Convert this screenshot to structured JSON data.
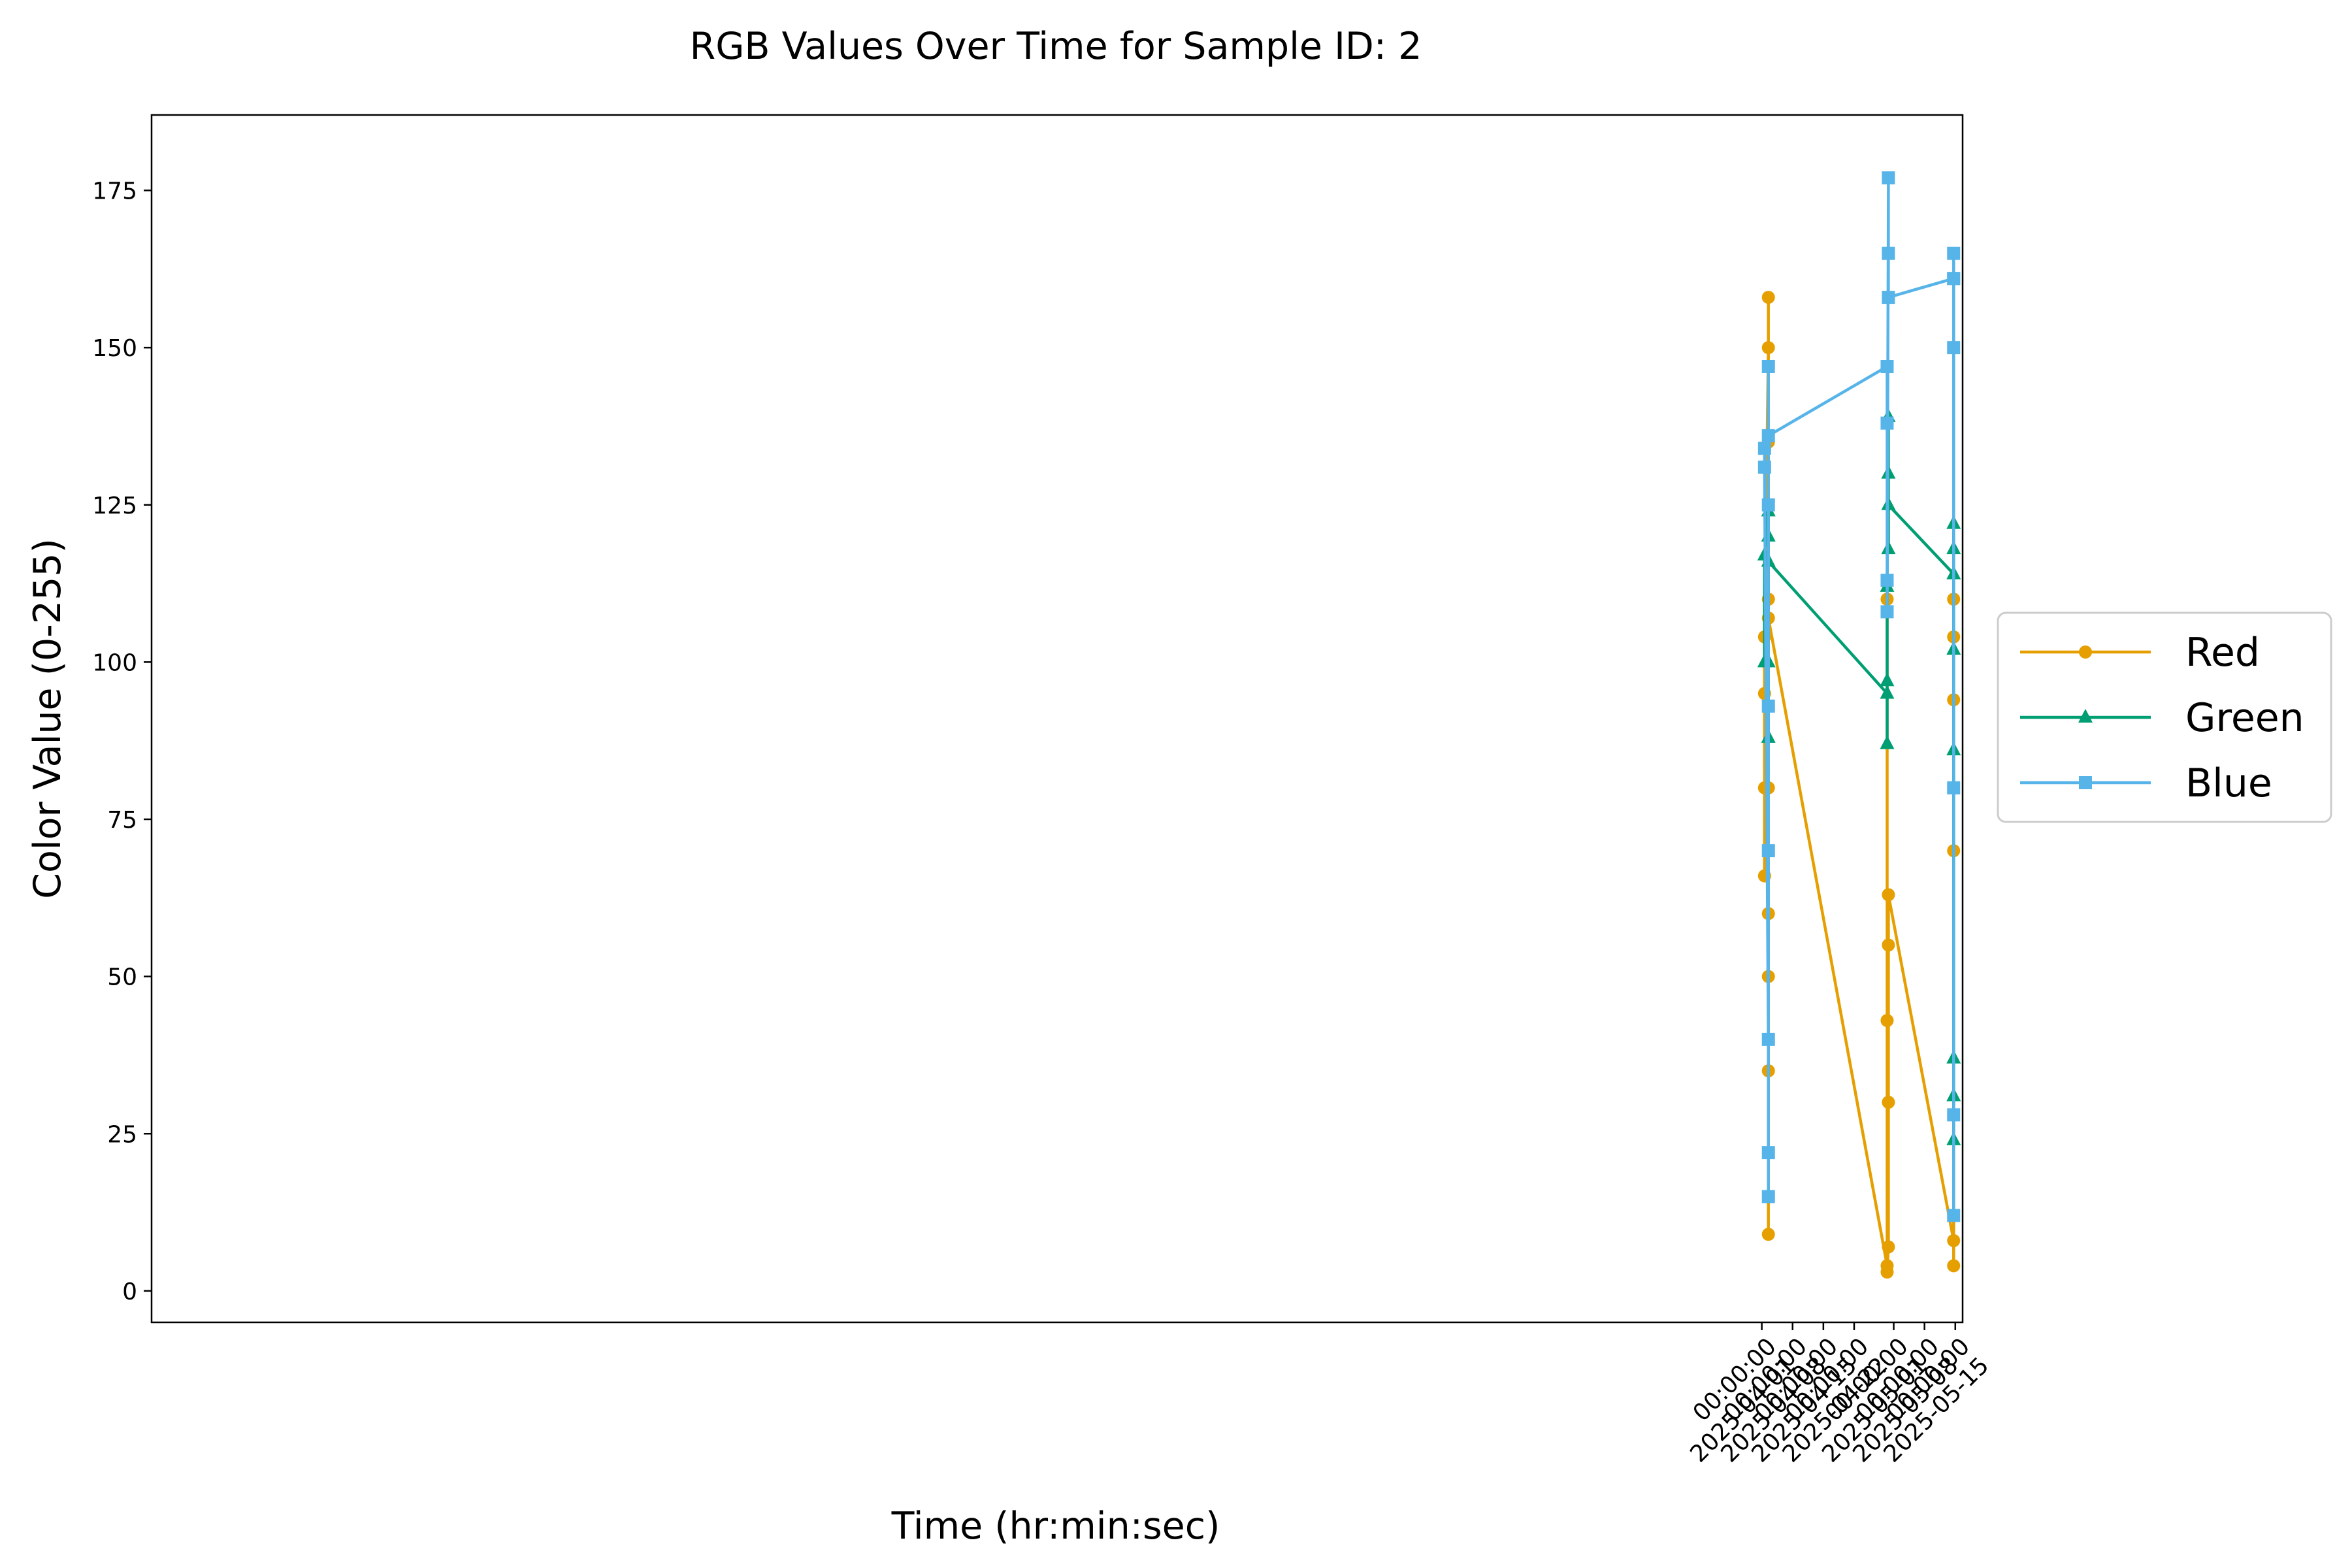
{
  "chart_data": {
    "type": "line",
    "title": "RGB Values Over Time for Sample ID: 2",
    "xlabel": "Time (hr:min:sec)",
    "ylabel": "Color Value (0-255)",
    "x_axis": {
      "kind": "date",
      "range": [
        "2024-03-30T20:00:00",
        "2025-05-16T16:00:00"
      ],
      "ticks": [
        {
          "value": "2025-04-01T00:00:00",
          "line1": "00:00:00",
          "line2": "2025-04-01"
        },
        {
          "value": "2025-04-08T00:00:00",
          "line1": "00:00:00",
          "line2": "2025-04-08"
        },
        {
          "value": "2025-04-15T00:00:00",
          "line1": "00:00:00",
          "line2": "2025-04-15"
        },
        {
          "value": "2025-04-22T00:00:00",
          "line1": "00:00:00",
          "line2": "2025-04-22"
        },
        {
          "value": "2025-05-01T00:00:00",
          "line1": "00:00:00",
          "line2": "2025-05-01"
        },
        {
          "value": "2025-05-08T00:00:00",
          "line1": "00:00:00",
          "line2": "2025-05-08"
        },
        {
          "value": "2025-05-15T00:00:00",
          "line1": "00:00:00",
          "line2": "2025-05-15"
        }
      ]
    },
    "y_axis": {
      "range": [
        -5,
        187
      ],
      "ticks": [
        0,
        25,
        50,
        75,
        100,
        125,
        150,
        175
      ]
    },
    "grid": false,
    "legend": {
      "placement": "right, outside plot"
    },
    "series": [
      {
        "name": "Red",
        "color": "#E69F00",
        "marker": "circle",
        "points": [
          [
            "2025-04-01T15:00:00",
            66
          ],
          [
            "2025-04-01T15:00:00",
            80
          ],
          [
            "2025-04-01T15:00:00",
            95
          ],
          [
            "2025-04-01T15:00:00",
            104
          ],
          [
            "2025-04-02T12:00:00",
            150
          ],
          [
            "2025-04-02T12:00:00",
            158
          ],
          [
            "2025-04-02T12:00:00",
            135
          ],
          [
            "2025-04-02T12:00:00",
            110
          ],
          [
            "2025-04-02T12:00:00",
            80
          ],
          [
            "2025-04-02T12:00:00",
            50
          ],
          [
            "2025-04-02T12:00:00",
            35
          ],
          [
            "2025-04-02T12:00:00",
            9
          ],
          [
            "2025-04-02T12:00:00",
            60
          ],
          [
            "2025-04-02T12:00:00",
            107
          ],
          [
            "2025-04-29T12:00:00",
            4
          ],
          [
            "2025-04-29T12:00:00",
            43
          ],
          [
            "2025-04-29T12:00:00",
            110
          ],
          [
            "2025-04-29T12:00:00",
            3
          ],
          [
            "2025-04-29T19:00:00",
            7
          ],
          [
            "2025-04-29T19:00:00",
            30
          ],
          [
            "2025-04-29T19:00:00",
            55
          ],
          [
            "2025-04-29T19:00:00",
            63
          ],
          [
            "2025-05-14T15:00:00",
            8
          ],
          [
            "2025-05-14T15:00:00",
            94
          ],
          [
            "2025-05-14T15:00:00",
            110
          ],
          [
            "2025-05-14T15:00:00",
            4
          ],
          [
            "2025-05-14T15:00:00",
            70
          ],
          [
            "2025-05-14T15:00:00",
            104
          ]
        ]
      },
      {
        "name": "Green",
        "color": "#009E73",
        "marker": "triangle",
        "points": [
          [
            "2025-04-01T15:00:00",
            100
          ],
          [
            "2025-04-01T15:00:00",
            117
          ],
          [
            "2025-04-02T12:00:00",
            124
          ],
          [
            "2025-04-02T12:00:00",
            100
          ],
          [
            "2025-04-02T12:00:00",
            88
          ],
          [
            "2025-04-02T12:00:00",
            120
          ],
          [
            "2025-04-02T12:00:00",
            116
          ],
          [
            "2025-04-29T12:00:00",
            95
          ],
          [
            "2025-04-29T12:00:00",
            87
          ],
          [
            "2025-04-29T12:00:00",
            97
          ],
          [
            "2025-04-29T12:00:00",
            112
          ],
          [
            "2025-04-29T19:00:00",
            139
          ],
          [
            "2025-04-29T19:00:00",
            118
          ],
          [
            "2025-04-29T19:00:00",
            130
          ],
          [
            "2025-04-29T19:00:00",
            125
          ],
          [
            "2025-05-14T15:00:00",
            114
          ],
          [
            "2025-05-14T15:00:00",
            122
          ],
          [
            "2025-05-14T15:00:00",
            86
          ],
          [
            "2025-05-14T15:00:00",
            37
          ],
          [
            "2025-05-14T15:00:00",
            24
          ],
          [
            "2025-05-14T15:00:00",
            31
          ],
          [
            "2025-05-14T15:00:00",
            102
          ],
          [
            "2025-05-14T15:00:00",
            118
          ]
        ]
      },
      {
        "name": "Blue",
        "color": "#56B4E9",
        "marker": "square",
        "points": [
          [
            "2025-04-01T15:00:00",
            134
          ],
          [
            "2025-04-01T15:00:00",
            131
          ],
          [
            "2025-04-02T12:00:00",
            40
          ],
          [
            "2025-04-02T12:00:00",
            15
          ],
          [
            "2025-04-02T12:00:00",
            22
          ],
          [
            "2025-04-02T12:00:00",
            70
          ],
          [
            "2025-04-02T12:00:00",
            93
          ],
          [
            "2025-04-02T12:00:00",
            147
          ],
          [
            "2025-04-02T12:00:00",
            125
          ],
          [
            "2025-04-02T12:00:00",
            136
          ],
          [
            "2025-04-29T12:00:00",
            147
          ],
          [
            "2025-04-29T12:00:00",
            138
          ],
          [
            "2025-04-29T12:00:00",
            113
          ],
          [
            "2025-04-29T12:00:00",
            108
          ],
          [
            "2025-04-29T19:00:00",
            177
          ],
          [
            "2025-04-29T19:00:00",
            165
          ],
          [
            "2025-04-29T19:00:00",
            158
          ],
          [
            "2025-05-14T15:00:00",
            161
          ],
          [
            "2025-05-14T15:00:00",
            150
          ],
          [
            "2025-05-14T15:00:00",
            12
          ],
          [
            "2025-05-14T15:00:00",
            28
          ],
          [
            "2025-05-14T15:00:00",
            80
          ],
          [
            "2025-05-14T15:00:00",
            165
          ],
          [
            "2025-05-14T15:00:00",
            161
          ]
        ]
      }
    ]
  }
}
